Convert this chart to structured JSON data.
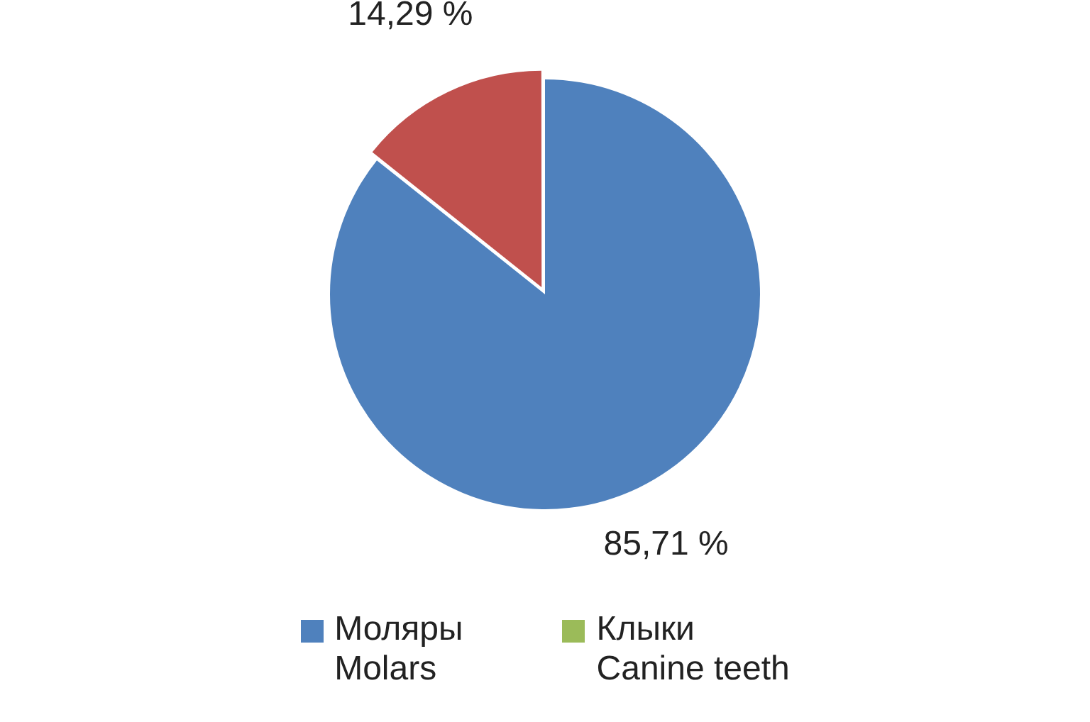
{
  "chart_data": {
    "type": "pie",
    "categories": [
      "Моляры\nMolars",
      "Клыки\nCanine teeth",
      null
    ],
    "values": [
      85.71,
      0,
      14.29
    ],
    "colors": [
      "#4f81bd",
      "#9bbb59",
      "#c0504d"
    ],
    "value_labels": [
      "85,71 %",
      null,
      "14,29 %"
    ],
    "legend": "bottom"
  }
}
